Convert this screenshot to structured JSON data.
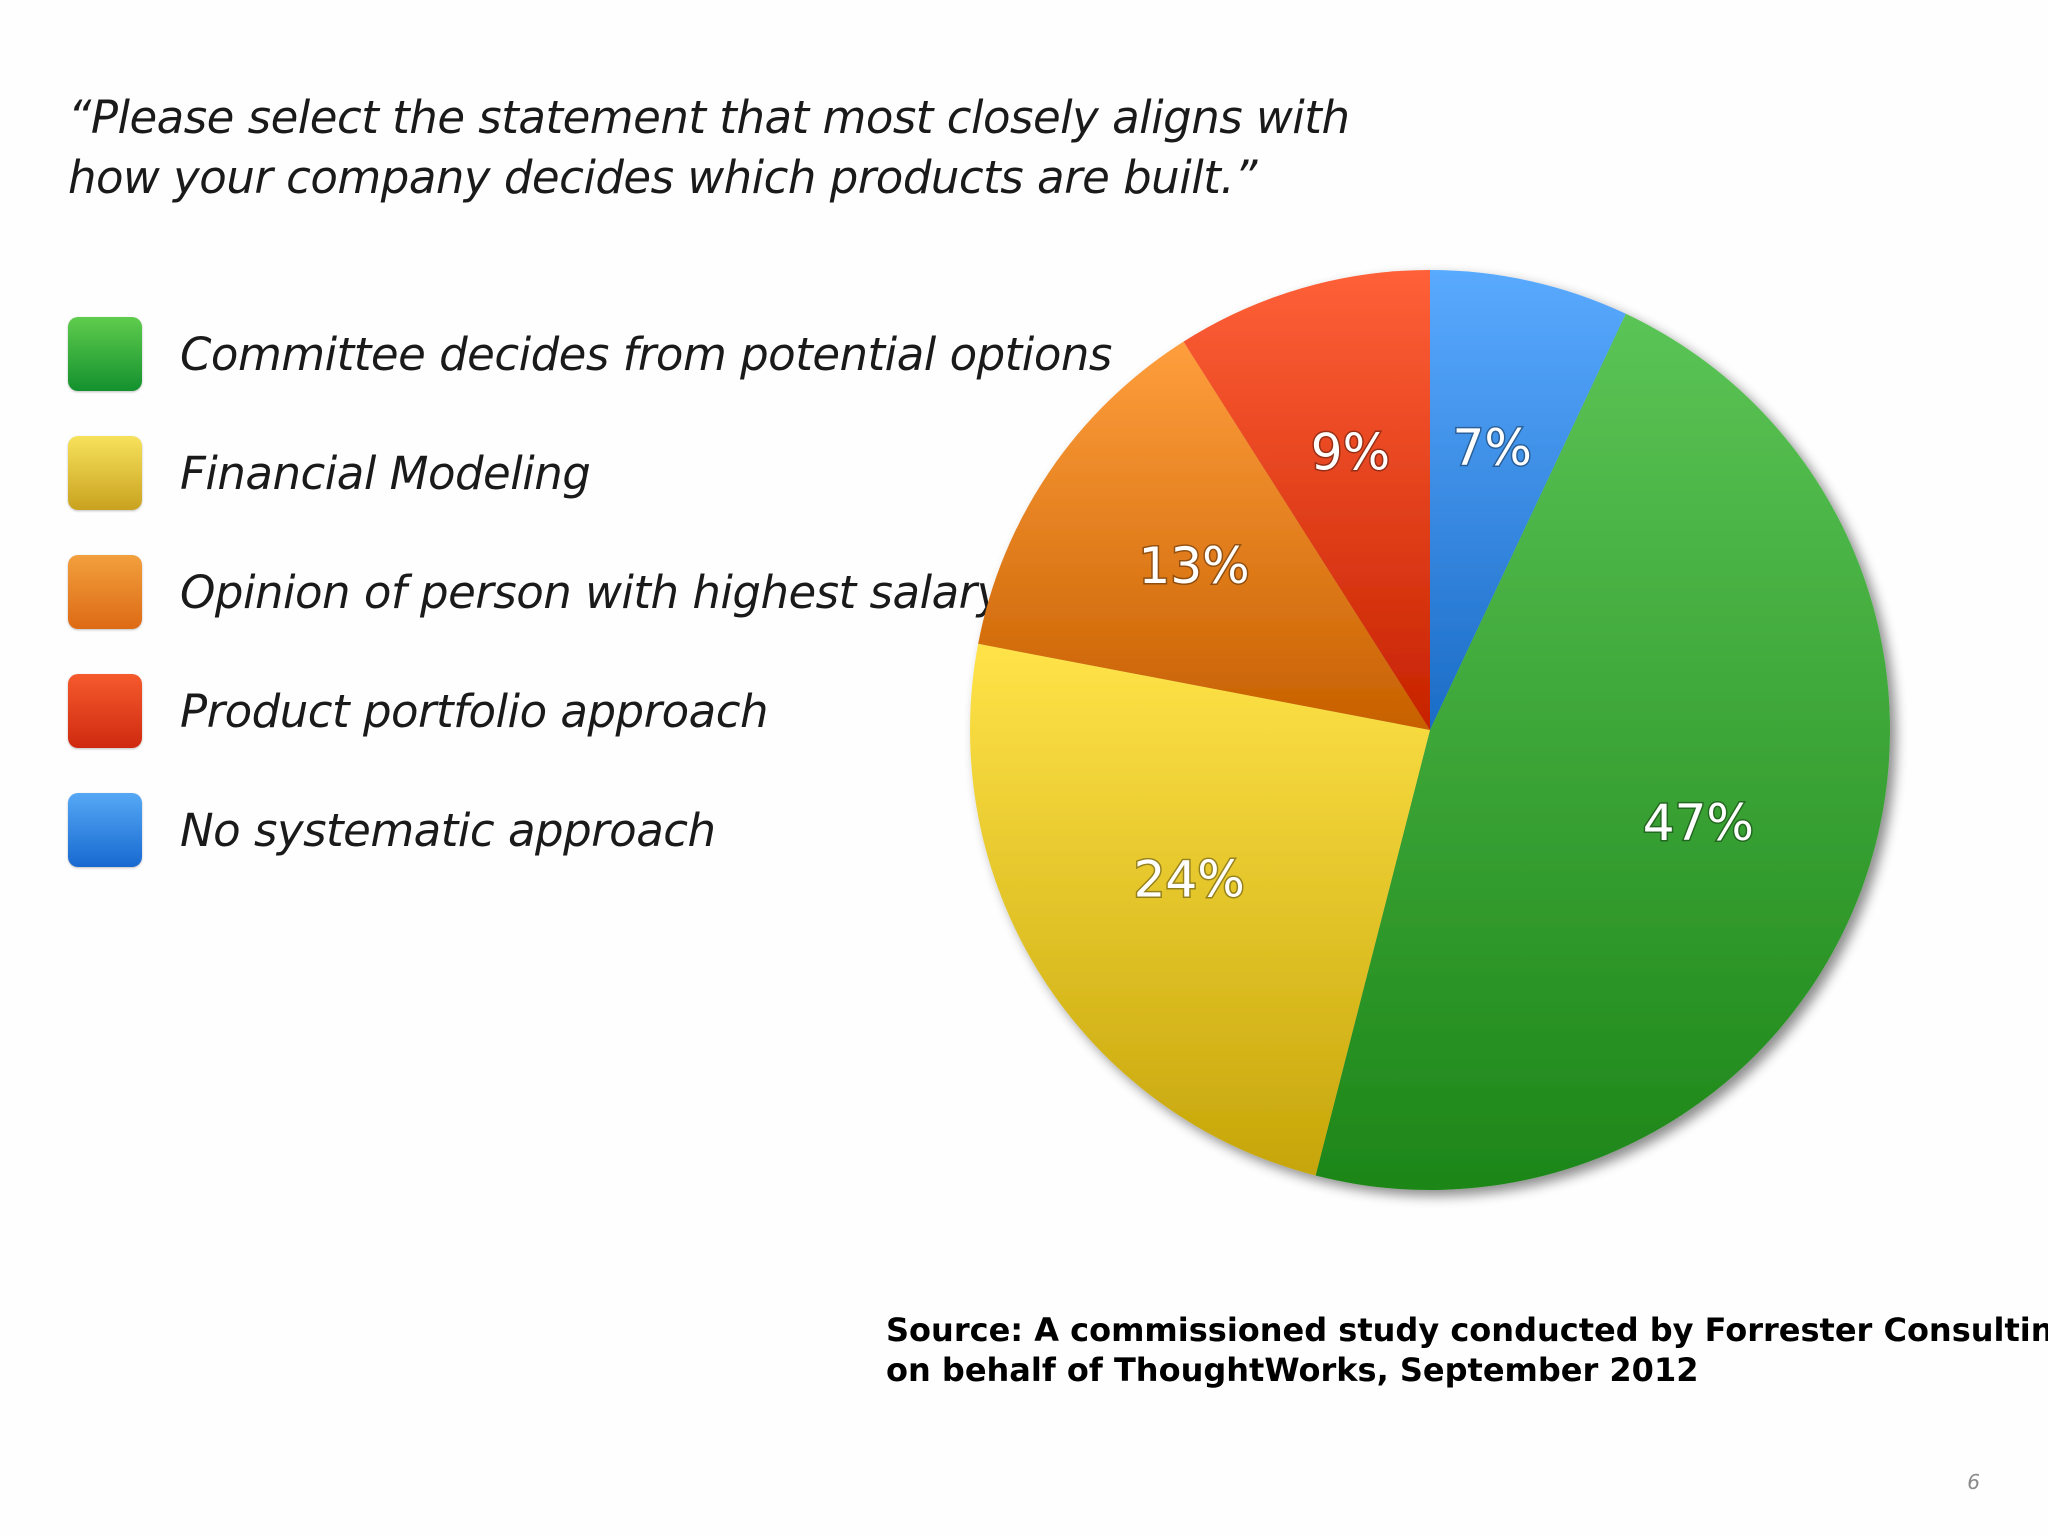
{
  "question": {
    "line1": "“Please select the statement that most closely aligns with",
    "line2": "how your company decides which products are built.”"
  },
  "legend": [
    {
      "label": "Committee decides from potential options",
      "color_top": "#5fcc4d",
      "color_bottom": "#13912e"
    },
    {
      "label": "Financial Modeling",
      "color_top": "#f7e25c",
      "color_bottom": "#c9a21f"
    },
    {
      "label": "Opinion of person with highest salary",
      "color_top": "#f2a03e",
      "color_bottom": "#dd6a14"
    },
    {
      "label": "Product portfolio approach",
      "color_top": "#f55a2c",
      "color_bottom": "#cf2a10"
    },
    {
      "label": "No systematic approach",
      "color_top": "#56a8f5",
      "color_bottom": "#1769d1"
    }
  ],
  "chart_data": {
    "type": "pie",
    "title": "“Please select the statement that most closely aligns with how your company decides which products are built.”",
    "start": "12 o'clock",
    "direction": "clockwise",
    "slices": [
      {
        "name": "No systematic approach",
        "value": 7,
        "label": "7%",
        "color": "#3d8ee8"
      },
      {
        "name": "Committee decides from potential options",
        "value": 47,
        "label": "47%",
        "color": "#3fa83a"
      },
      {
        "name": "Financial Modeling",
        "value": 24,
        "label": "24%",
        "color": "#e8c72c"
      },
      {
        "name": "Opinion of person with highest salary",
        "value": 13,
        "label": "13%",
        "color": "#e98221"
      },
      {
        "name": "Product portfolio approach",
        "value": 9,
        "label": "9%",
        "color": "#e8441c"
      }
    ]
  },
  "source": {
    "line1": "Source: A commissioned study conducted by Forrester Consulting",
    "line2": "on behalf of ThoughtWorks, September 2012"
  },
  "page_number": "6"
}
